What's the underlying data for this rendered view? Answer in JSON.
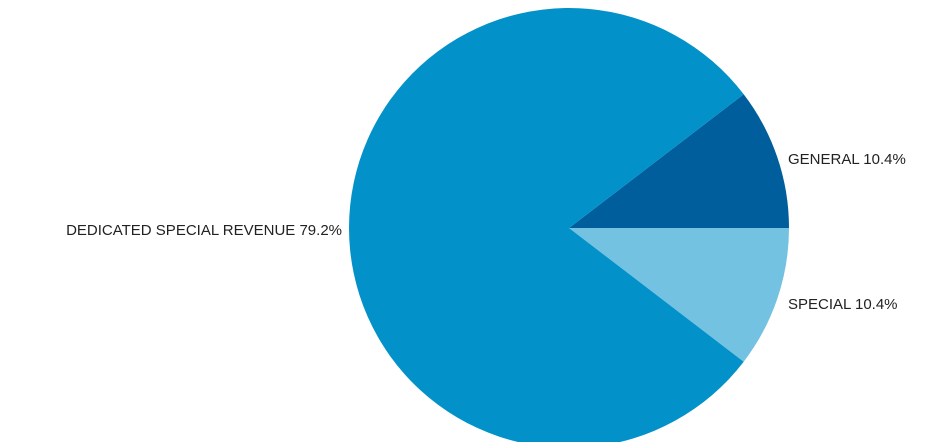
{
  "chart_data": {
    "type": "pie",
    "title": "",
    "slices": [
      {
        "label": "GENERAL",
        "percent_text": "10.4%",
        "value": 10.4,
        "color": "#005e9c"
      },
      {
        "label": "SPECIAL",
        "percent_text": "10.4%",
        "value": 10.4,
        "color": "#74c2e2"
      },
      {
        "label": "DEDICATED SPECIAL REVENUE",
        "percent_text": "79.2%",
        "value": 79.2,
        "color": "#0391c9"
      }
    ],
    "start_angle_deg": 0,
    "direction": "clockwise-from-east-going-counterclockwise-first",
    "legend": "none",
    "labels": "outside"
  }
}
